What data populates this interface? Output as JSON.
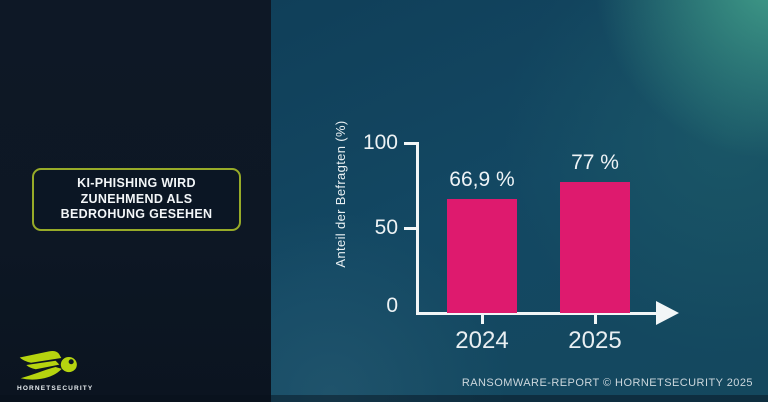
{
  "slide": {
    "title_lines": [
      "KI-PHISHING WIRD",
      "ZUNEHMEND ALS",
      "BEDROHUNG GESEHEN"
    ],
    "brand": "HORNETSECURITY",
    "footer": "RANSOMWARE-REPORT © HORNETSECURITY 2025"
  },
  "colors": {
    "left_panel": "#0d1724",
    "accent_green": "#97ab28",
    "logo_lime": "#b6d40f",
    "bar_pink": "#de1a6e",
    "axis_white": "#f2f6f7"
  },
  "chart_data": {
    "type": "bar",
    "categories": [
      "2024",
      "2025"
    ],
    "values": [
      66.9,
      77
    ],
    "value_labels": [
      "66,9 %",
      "77 %"
    ],
    "title": "",
    "xlabel": "",
    "ylabel": "Anteil der Befragten (%)",
    "yticks": [
      0,
      50,
      100
    ],
    "ylim": [
      0,
      100
    ],
    "grid": false,
    "legend": false
  }
}
